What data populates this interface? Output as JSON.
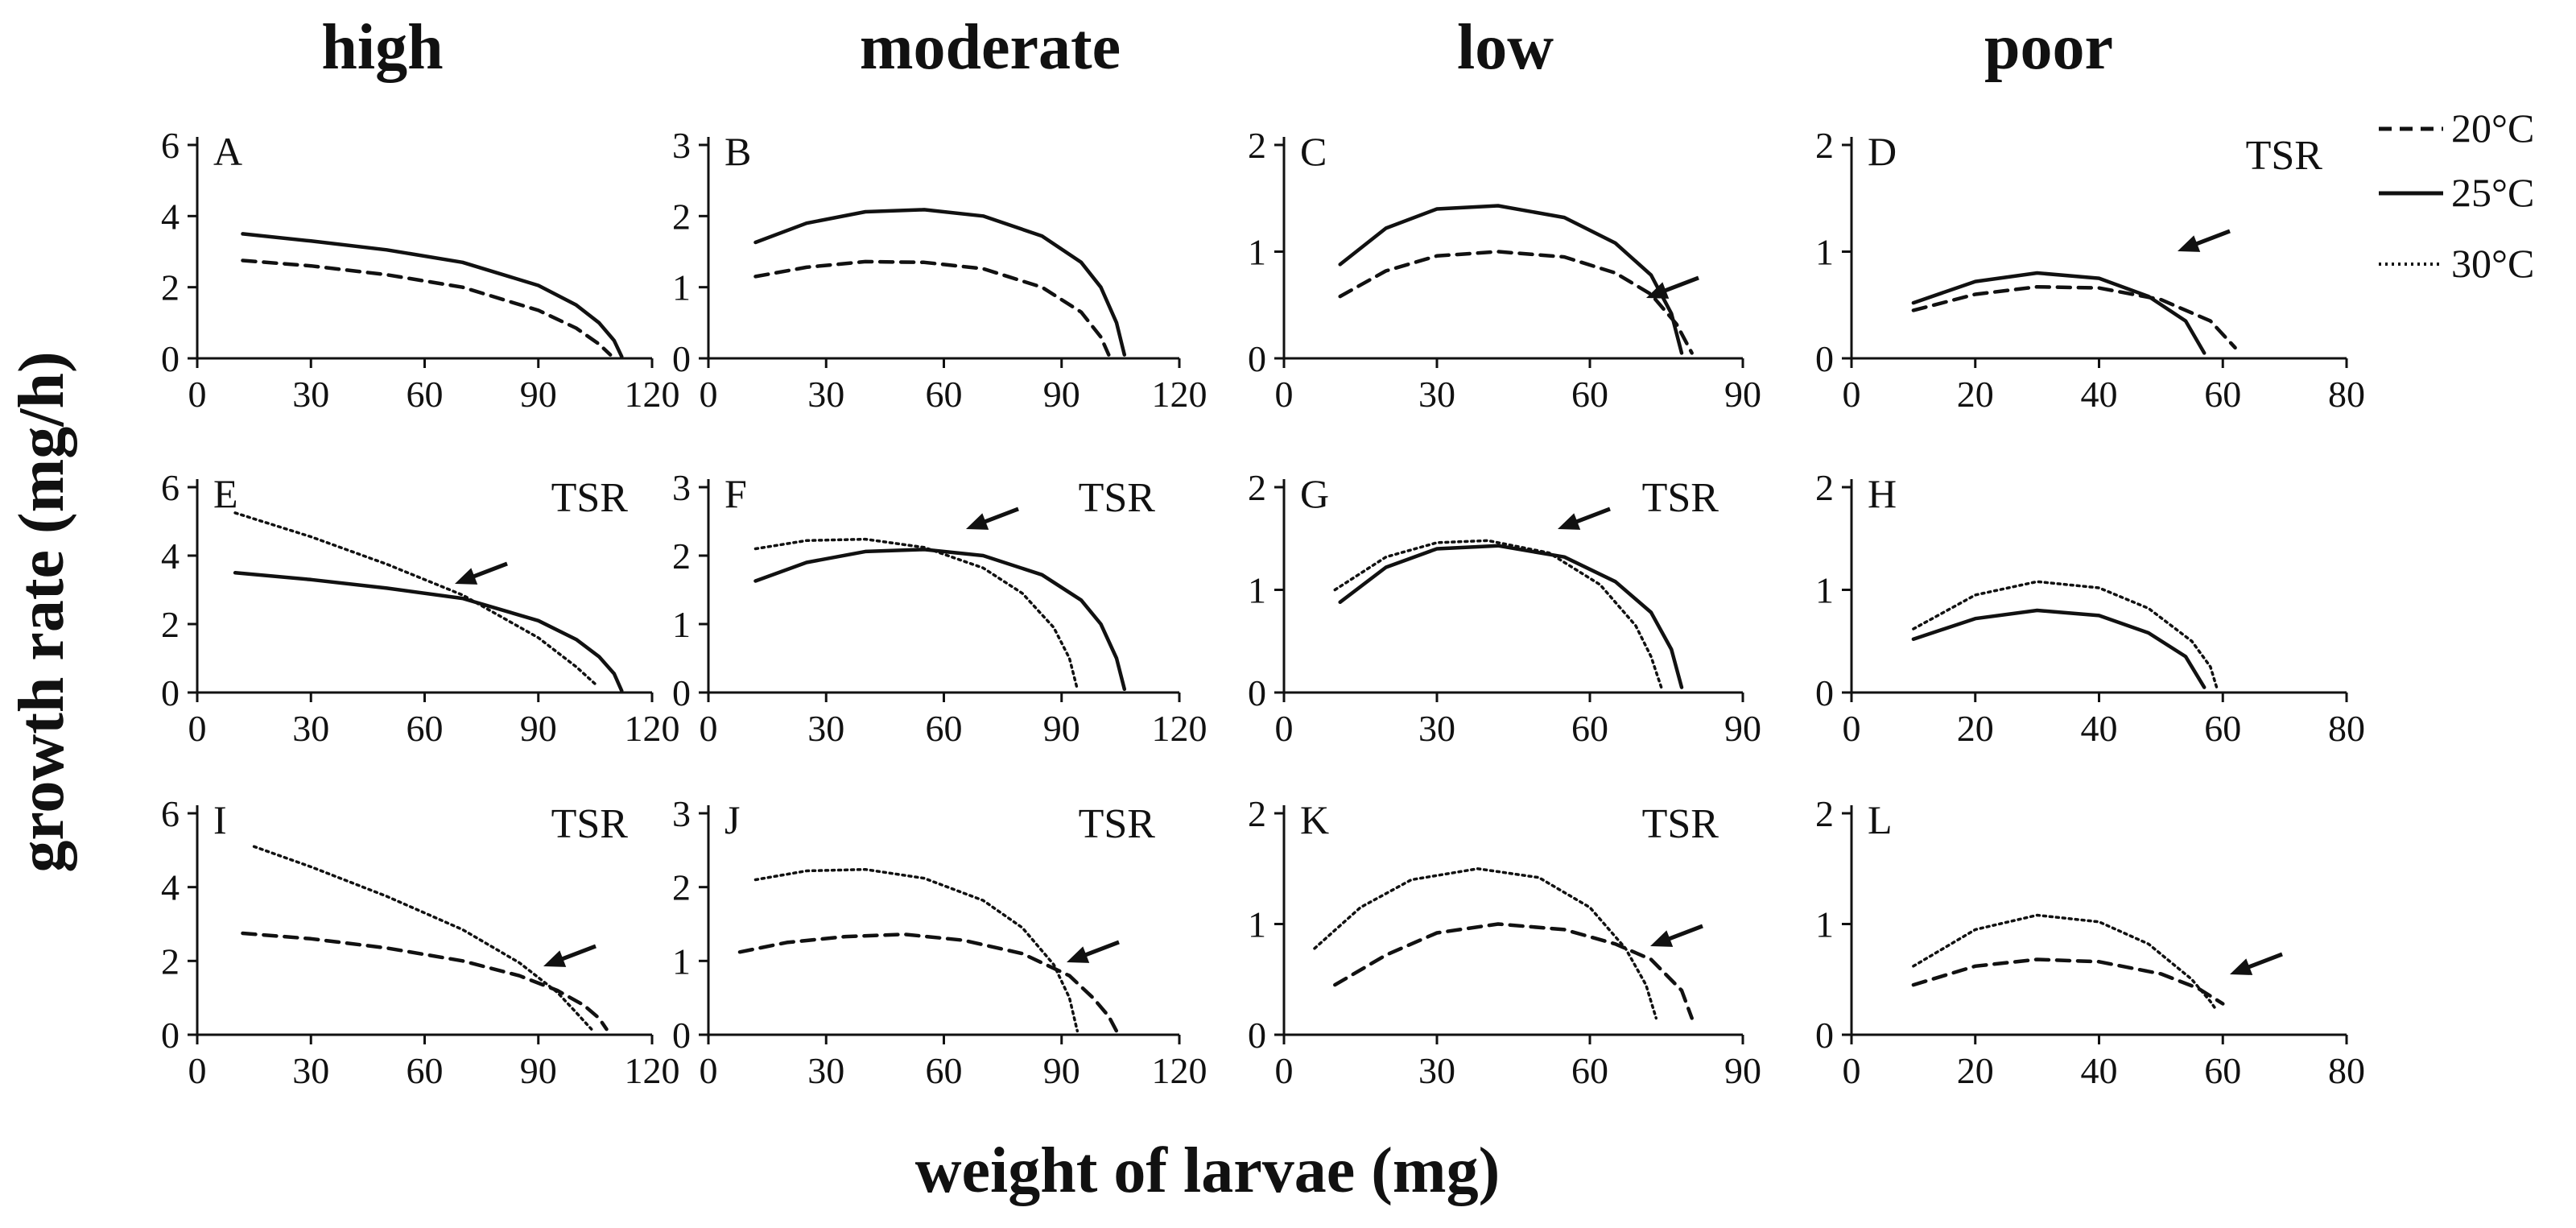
{
  "columns": [
    "high",
    "moderate",
    "low",
    "poor"
  ],
  "xlabel": "weight of larvae (mg)",
  "ylabel": "growth rate (mg/h)",
  "legend": [
    {
      "label": "20°C",
      "style": "dashed"
    },
    {
      "label": "25°C",
      "style": "solid"
    },
    {
      "label": "30°C",
      "style": "dotted"
    }
  ],
  "chart_data": [
    {
      "panel": "A",
      "row": 0,
      "col": 0,
      "type": "line",
      "xticks": [
        "0",
        "30",
        "60",
        "90",
        "120"
      ],
      "yticks": [
        "0",
        "2",
        "4",
        "6"
      ],
      "xlim": [
        0,
        120
      ],
      "ylim": [
        0,
        6
      ],
      "tsr": "",
      "series": [
        {
          "name": "20°C",
          "x": [
            12,
            30,
            50,
            70,
            90,
            100,
            106,
            109
          ],
          "y": [
            2.75,
            2.6,
            2.35,
            2.0,
            1.35,
            0.85,
            0.4,
            0.1
          ]
        },
        {
          "name": "25°C",
          "x": [
            12,
            30,
            50,
            70,
            90,
            100,
            106,
            110,
            112
          ],
          "y": [
            3.5,
            3.3,
            3.05,
            2.7,
            2.05,
            1.5,
            1.0,
            0.5,
            0.05
          ]
        }
      ]
    },
    {
      "panel": "B",
      "row": 0,
      "col": 1,
      "type": "line",
      "xticks": [
        "0",
        "30",
        "60",
        "90",
        "120"
      ],
      "yticks": [
        "0",
        "1",
        "2",
        "3"
      ],
      "xlim": [
        0,
        120
      ],
      "ylim": [
        0,
        3
      ],
      "tsr": "",
      "series": [
        {
          "name": "20°C",
          "x": [
            12,
            25,
            40,
            55,
            70,
            85,
            95,
            100,
            102
          ],
          "y": [
            1.15,
            1.28,
            1.36,
            1.35,
            1.26,
            1.0,
            0.65,
            0.3,
            0.05
          ]
        },
        {
          "name": "25°C",
          "x": [
            12,
            25,
            40,
            55,
            70,
            85,
            95,
            100,
            104,
            106
          ],
          "y": [
            1.63,
            1.9,
            2.06,
            2.09,
            2.0,
            1.72,
            1.35,
            1.0,
            0.5,
            0.05
          ]
        }
      ]
    },
    {
      "panel": "C",
      "row": 0,
      "col": 2,
      "type": "line",
      "xticks": [
        "0",
        "30",
        "60",
        "90"
      ],
      "yticks": [
        "0",
        "1",
        "2"
      ],
      "xlim": [
        0,
        90
      ],
      "ylim": [
        0,
        2
      ],
      "tsr": "",
      "series": [
        {
          "name": "20°C",
          "x": [
            11,
            20,
            30,
            42,
            55,
            65,
            72,
            77,
            80
          ],
          "y": [
            0.58,
            0.82,
            0.96,
            1.0,
            0.95,
            0.8,
            0.6,
            0.32,
            0.05
          ]
        },
        {
          "name": "25°C",
          "x": [
            11,
            20,
            30,
            42,
            55,
            65,
            72,
            76,
            78
          ],
          "y": [
            0.88,
            1.22,
            1.4,
            1.43,
            1.32,
            1.08,
            0.78,
            0.42,
            0.05
          ]
        }
      ]
    },
    {
      "panel": "D",
      "row": 0,
      "col": 3,
      "type": "line",
      "xticks": [
        "0",
        "20",
        "40",
        "60",
        "80"
      ],
      "yticks": [
        "0",
        "1",
        "2"
      ],
      "xlim": [
        0,
        80
      ],
      "ylim": [
        0,
        2
      ],
      "tsr": "TSR",
      "series": [
        {
          "name": "20°C",
          "x": [
            10,
            20,
            30,
            40,
            50,
            58,
            62
          ],
          "y": [
            0.45,
            0.6,
            0.67,
            0.66,
            0.55,
            0.35,
            0.1
          ]
        },
        {
          "name": "25°C",
          "x": [
            10,
            20,
            30,
            40,
            48,
            54,
            57
          ],
          "y": [
            0.52,
            0.72,
            0.8,
            0.75,
            0.58,
            0.35,
            0.05
          ]
        }
      ]
    },
    {
      "panel": "E",
      "row": 1,
      "col": 0,
      "type": "line",
      "xticks": [
        "0",
        "30",
        "60",
        "90",
        "120"
      ],
      "yticks": [
        "0",
        "2",
        "4",
        "6"
      ],
      "xlim": [
        0,
        120
      ],
      "ylim": [
        0,
        6
      ],
      "tsr": "TSR",
      "series": [
        {
          "name": "25°C",
          "x": [
            10,
            30,
            50,
            70,
            90,
            100,
            106,
            110,
            112
          ],
          "y": [
            3.5,
            3.3,
            3.05,
            2.75,
            2.1,
            1.55,
            1.05,
            0.55,
            0.05
          ]
        },
        {
          "name": "30°C",
          "x": [
            10,
            30,
            50,
            70,
            90,
            100,
            105
          ],
          "y": [
            5.25,
            4.55,
            3.75,
            2.85,
            1.6,
            0.75,
            0.25
          ]
        }
      ]
    },
    {
      "panel": "F",
      "row": 1,
      "col": 1,
      "type": "line",
      "xticks": [
        "0",
        "30",
        "60",
        "90",
        "120"
      ],
      "yticks": [
        "0",
        "1",
        "2",
        "3"
      ],
      "xlim": [
        0,
        120
      ],
      "ylim": [
        0,
        3
      ],
      "tsr": "TSR",
      "series": [
        {
          "name": "25°C",
          "x": [
            12,
            25,
            40,
            55,
            70,
            85,
            95,
            100,
            104,
            106
          ],
          "y": [
            1.63,
            1.9,
            2.06,
            2.09,
            2.0,
            1.72,
            1.35,
            1.0,
            0.5,
            0.05
          ]
        },
        {
          "name": "30°C",
          "x": [
            12,
            25,
            40,
            55,
            70,
            80,
            88,
            92,
            94
          ],
          "y": [
            2.1,
            2.22,
            2.24,
            2.12,
            1.82,
            1.45,
            0.95,
            0.5,
            0.05
          ]
        }
      ]
    },
    {
      "panel": "G",
      "row": 1,
      "col": 2,
      "type": "line",
      "xticks": [
        "0",
        "30",
        "60",
        "90"
      ],
      "yticks": [
        "0",
        "1",
        "2"
      ],
      "xlim": [
        0,
        90
      ],
      "ylim": [
        0,
        2
      ],
      "tsr": "TSR",
      "series": [
        {
          "name": "25°C",
          "x": [
            11,
            20,
            30,
            42,
            55,
            65,
            72,
            76,
            78
          ],
          "y": [
            0.88,
            1.22,
            1.4,
            1.43,
            1.32,
            1.08,
            0.78,
            0.42,
            0.05
          ]
        },
        {
          "name": "30°C",
          "x": [
            10,
            20,
            30,
            40,
            52,
            62,
            69,
            72,
            74
          ],
          "y": [
            1.0,
            1.32,
            1.46,
            1.48,
            1.36,
            1.05,
            0.65,
            0.35,
            0.05
          ]
        }
      ]
    },
    {
      "panel": "H",
      "row": 1,
      "col": 3,
      "type": "line",
      "xticks": [
        "0",
        "20",
        "40",
        "60",
        "80"
      ],
      "yticks": [
        "0",
        "1",
        "2"
      ],
      "xlim": [
        0,
        80
      ],
      "ylim": [
        0,
        2
      ],
      "tsr": "",
      "series": [
        {
          "name": "25°C",
          "x": [
            10,
            20,
            30,
            40,
            48,
            54,
            57
          ],
          "y": [
            0.52,
            0.72,
            0.8,
            0.75,
            0.58,
            0.35,
            0.05
          ]
        },
        {
          "name": "30°C",
          "x": [
            10,
            20,
            30,
            40,
            48,
            55,
            58,
            59
          ],
          "y": [
            0.62,
            0.95,
            1.08,
            1.02,
            0.82,
            0.5,
            0.25,
            0.05
          ]
        }
      ]
    },
    {
      "panel": "I",
      "row": 2,
      "col": 0,
      "type": "line",
      "xticks": [
        "0",
        "30",
        "60",
        "90",
        "120"
      ],
      "yticks": [
        "0",
        "2",
        "4",
        "6"
      ],
      "xlim": [
        0,
        120
      ],
      "ylim": [
        0,
        6
      ],
      "tsr": "TSR",
      "series": [
        {
          "name": "20°C",
          "x": [
            12,
            30,
            50,
            70,
            85,
            95,
            102,
            106,
            108
          ],
          "y": [
            2.75,
            2.6,
            2.35,
            2.0,
            1.6,
            1.2,
            0.8,
            0.45,
            0.15
          ]
        },
        {
          "name": "30°C",
          "x": [
            15,
            30,
            50,
            70,
            85,
            95,
            100,
            104
          ],
          "y": [
            5.1,
            4.55,
            3.75,
            2.85,
            1.95,
            1.15,
            0.6,
            0.15
          ]
        }
      ]
    },
    {
      "panel": "J",
      "row": 2,
      "col": 1,
      "type": "line",
      "xticks": [
        "0",
        "30",
        "60",
        "90",
        "120"
      ],
      "yticks": [
        "0",
        "1",
        "2",
        "3"
      ],
      "xlim": [
        0,
        120
      ],
      "ylim": [
        0,
        3
      ],
      "tsr": "TSR",
      "series": [
        {
          "name": "20°C",
          "x": [
            8,
            20,
            35,
            50,
            65,
            80,
            92,
            98,
            102,
            104
          ],
          "y": [
            1.12,
            1.25,
            1.33,
            1.36,
            1.28,
            1.1,
            0.8,
            0.5,
            0.25,
            0.05
          ]
        },
        {
          "name": "30°C",
          "x": [
            12,
            25,
            40,
            55,
            70,
            80,
            88,
            92,
            94
          ],
          "y": [
            2.1,
            2.22,
            2.24,
            2.12,
            1.82,
            1.45,
            0.95,
            0.5,
            0.05
          ]
        }
      ]
    },
    {
      "panel": "K",
      "row": 2,
      "col": 2,
      "type": "line",
      "xticks": [
        "0",
        "30",
        "60",
        "90"
      ],
      "yticks": [
        "0",
        "1",
        "2"
      ],
      "xlim": [
        0,
        90
      ],
      "ylim": [
        0,
        2
      ],
      "tsr": "TSR",
      "series": [
        {
          "name": "20°C",
          "x": [
            10,
            20,
            30,
            42,
            55,
            65,
            72,
            78,
            80
          ],
          "y": [
            0.45,
            0.72,
            0.92,
            1.0,
            0.95,
            0.82,
            0.68,
            0.4,
            0.15
          ]
        },
        {
          "name": "30°C",
          "x": [
            6,
            15,
            25,
            38,
            50,
            60,
            67,
            71,
            73
          ],
          "y": [
            0.78,
            1.15,
            1.4,
            1.5,
            1.42,
            1.15,
            0.78,
            0.45,
            0.15
          ]
        }
      ]
    },
    {
      "panel": "L",
      "row": 2,
      "col": 3,
      "type": "line",
      "xticks": [
        "0",
        "20",
        "40",
        "60",
        "80"
      ],
      "yticks": [
        "0",
        "1",
        "2"
      ],
      "xlim": [
        0,
        80
      ],
      "ylim": [
        0,
        2
      ],
      "tsr": "",
      "series": [
        {
          "name": "20°C",
          "x": [
            10,
            20,
            30,
            40,
            50,
            56,
            60
          ],
          "y": [
            0.45,
            0.62,
            0.68,
            0.66,
            0.55,
            0.42,
            0.28
          ]
        },
        {
          "name": "30°C",
          "x": [
            10,
            20,
            30,
            40,
            48,
            55,
            58,
            59
          ],
          "y": [
            0.62,
            0.95,
            1.08,
            1.02,
            0.82,
            0.5,
            0.3,
            0.22
          ]
        }
      ]
    }
  ]
}
